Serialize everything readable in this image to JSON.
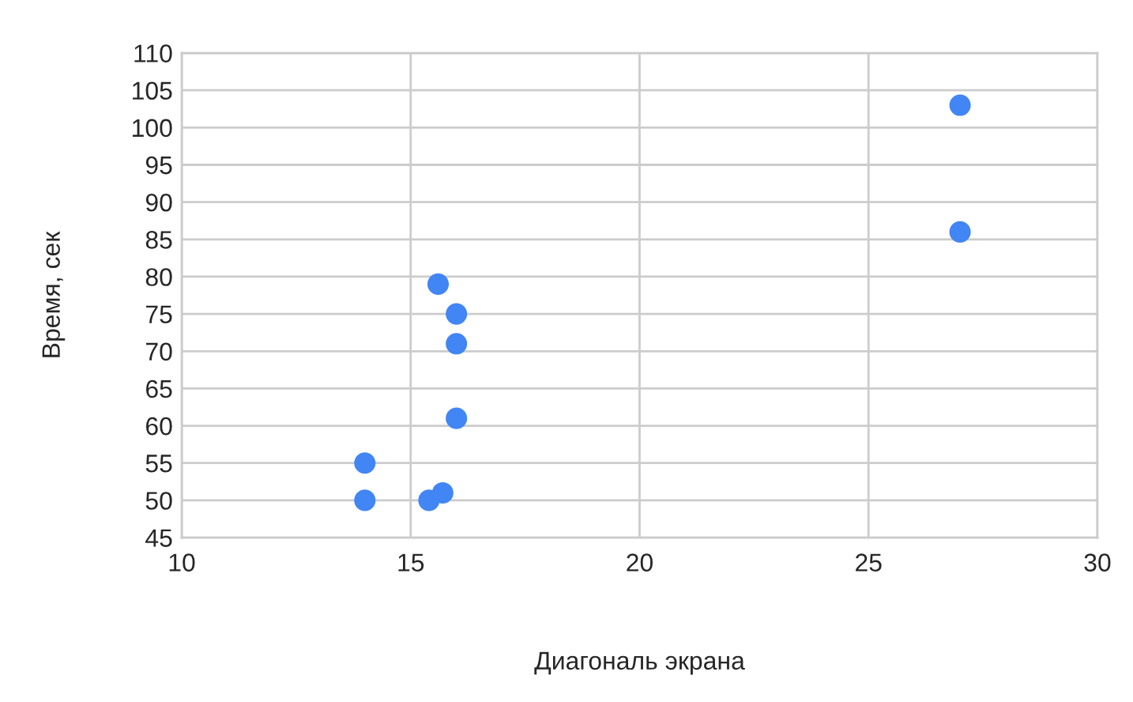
{
  "chart_data": {
    "type": "scatter",
    "xlabel": "Диагональ экрана",
    "ylabel": "Время, сек",
    "x": [
      27,
      27,
      15.6,
      16,
      16,
      16,
      14,
      14,
      15.4,
      15.7
    ],
    "values": [
      103,
      86,
      79,
      75,
      71,
      61,
      55,
      50,
      50,
      51
    ],
    "color": "#4285f4",
    "marker": "circle",
    "xlim": [
      10,
      30
    ],
    "xticks": [
      10,
      15,
      20,
      25,
      30
    ],
    "ylim": [
      45,
      110
    ],
    "yticks": [
      45,
      50,
      55,
      60,
      65,
      70,
      75,
      80,
      85,
      90,
      95,
      100,
      105,
      110
    ],
    "grid": true
  }
}
